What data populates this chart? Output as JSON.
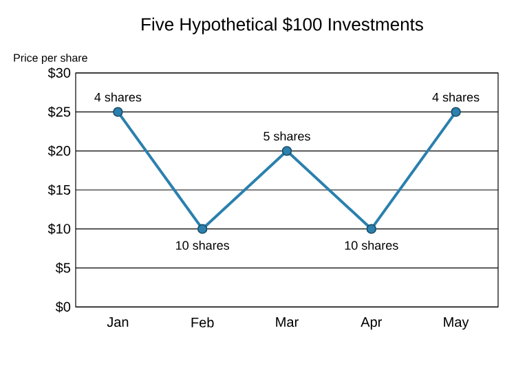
{
  "chart_data": {
    "type": "line",
    "title": "Five Hypothetical $100 Investments",
    "ylabel": "Price per share",
    "categories": [
      "Jan",
      "Feb",
      "Mar",
      "Apr",
      "May"
    ],
    "values": [
      25,
      10,
      20,
      10,
      25
    ],
    "color": "#2b80ae",
    "marker": "circle",
    "line_style": "solid",
    "ylim": [
      0,
      30
    ],
    "yticks": [
      {
        "value": 0,
        "label": "$0"
      },
      {
        "value": 5,
        "label": "$5"
      },
      {
        "value": 10,
        "label": "$10"
      },
      {
        "value": 15,
        "label": "$15"
      },
      {
        "value": 20,
        "label": "$20"
      },
      {
        "value": 25,
        "label": "$25"
      },
      {
        "value": 30,
        "label": "$30"
      }
    ],
    "grid": "y",
    "annotations": [
      {
        "text": "4 shares",
        "x": "Jan",
        "y": 25
      },
      {
        "text": "10 shares",
        "x": "Feb",
        "y": 10
      },
      {
        "text": "5 shares",
        "x": "Mar",
        "y": 20
      },
      {
        "text": "10 shares",
        "x": "Apr",
        "y": 10
      },
      {
        "text": "4 shares",
        "x": "May",
        "y": 25
      }
    ]
  }
}
